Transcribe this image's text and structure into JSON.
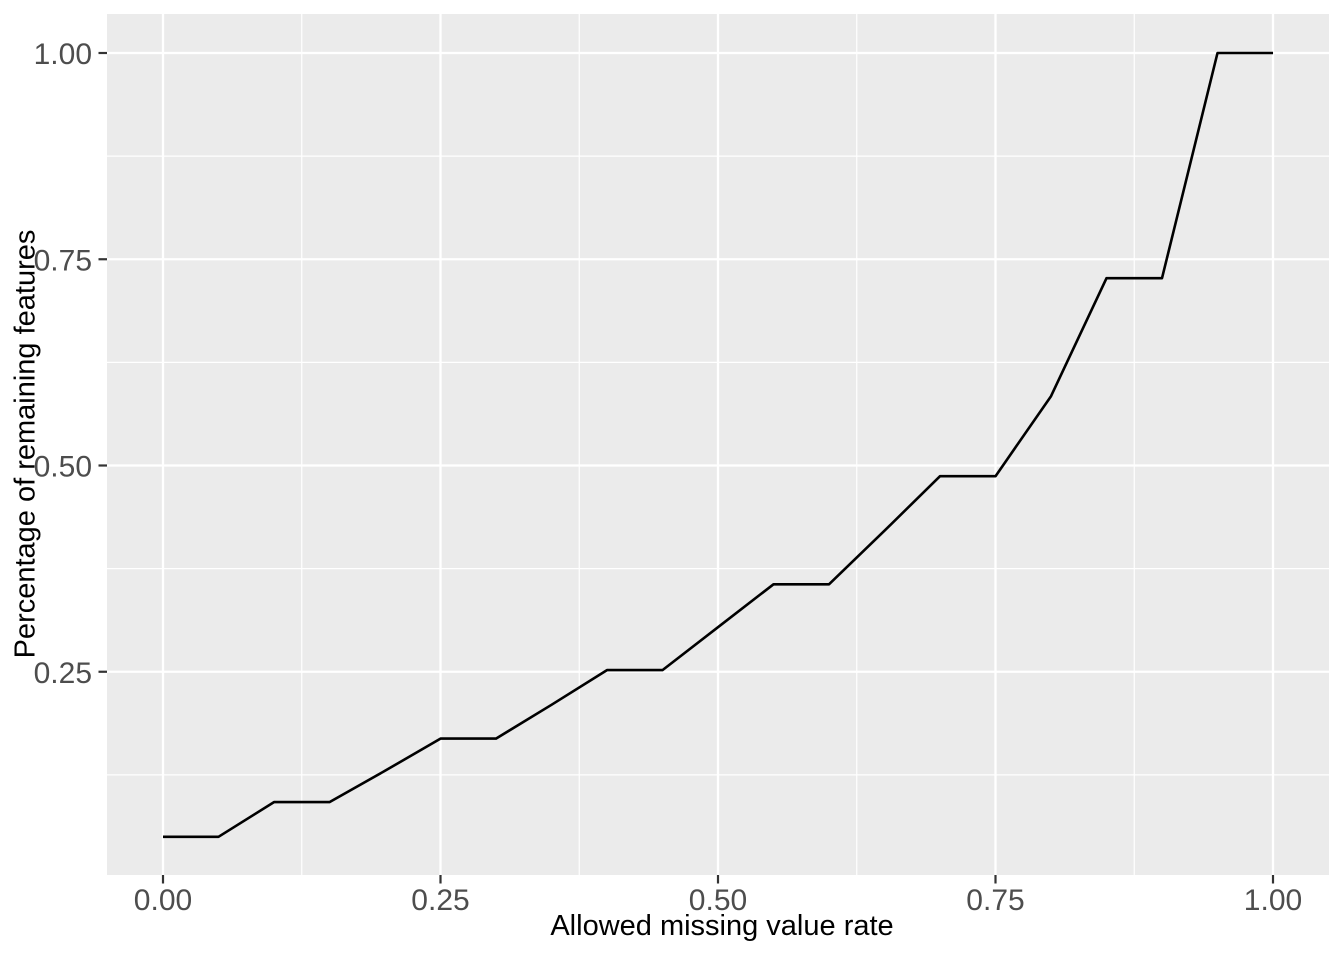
{
  "chart_data": {
    "type": "line",
    "title": "",
    "xlabel": "Allowed missing value rate",
    "ylabel": "Percentage of remaining features",
    "style": "ggplot2-grey-theme",
    "grid": true,
    "legend": false,
    "xlim": [
      -0.05,
      1.05
    ],
    "ylim": [
      0.0,
      1.047
    ],
    "x_major_ticks": [
      0.0,
      0.25,
      0.5,
      0.75,
      1.0
    ],
    "x_tick_labels": [
      "0.00",
      "0.25",
      "0.50",
      "0.75",
      "1.00"
    ],
    "x_minor_ticks": [
      0.125,
      0.375,
      0.625,
      0.875
    ],
    "y_major_ticks": [
      0.25,
      0.5,
      0.75,
      1.0
    ],
    "y_tick_labels": [
      "0.25",
      "0.50",
      "0.75",
      "1.00"
    ],
    "y_minor_ticks": [
      0.125,
      0.375,
      0.625,
      0.875
    ],
    "series": [
      {
        "name": "remaining-features",
        "x": [
          0.0,
          0.05,
          0.1,
          0.15,
          0.2,
          0.25,
          0.3,
          0.35,
          0.4,
          0.45,
          0.5,
          0.55,
          0.6,
          0.65,
          0.7,
          0.75,
          0.8,
          0.85,
          0.9,
          0.95,
          1.0
        ],
        "y": [
          0.05,
          0.05,
          0.092,
          0.092,
          0.13,
          0.169,
          0.169,
          0.21,
          0.252,
          0.252,
          0.304,
          0.356,
          0.356,
          0.421,
          0.487,
          0.487,
          0.584,
          0.727,
          0.727,
          1.0,
          1.0
        ]
      }
    ],
    "colors": {
      "page_background": "#ffffff",
      "panel_background": "#ebebeb",
      "gridline": "#ffffff",
      "line": "#000000",
      "tick_mark": "#333333",
      "tick_label": "#4d4d4d",
      "axis_title": "#000000"
    }
  }
}
